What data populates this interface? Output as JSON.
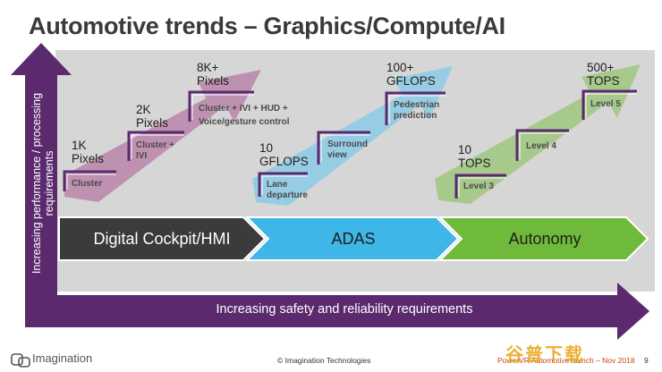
{
  "title": "Automotive trends – Graphics/Compute/AI",
  "y_axis_label": "Increasing performance / processing requirements",
  "x_axis_label": "Increasing safety and reliability requirements",
  "phases": [
    {
      "label": "Digital Cockpit/HMI",
      "color": "#3b3b3b",
      "text_color": "#ffffff"
    },
    {
      "label": "ADAS",
      "color": "#3fb6e8",
      "text_color": "#1e1e1e"
    },
    {
      "label": "Autonomy",
      "color": "#6fba3a",
      "text_color": "#1e1e1e"
    }
  ],
  "groups": {
    "cockpit": {
      "color": "#b57aa4",
      "steps": [
        {
          "value": "1K\nPixels",
          "feature": "Cluster"
        },
        {
          "value": "2K\nPixels",
          "feature": "Cluster +\nIVI"
        },
        {
          "value": "8K+\nPixels",
          "feature": "Cluster + IVI + HUD +\nVoice/gesture control"
        }
      ]
    },
    "adas": {
      "color": "#8ccbe6",
      "steps": [
        {
          "value": "10\nGFLOPS",
          "feature": "Lane\ndeparture"
        },
        {
          "value": "",
          "feature": "Surround\nview"
        },
        {
          "value": "100+\nGFLOPS",
          "feature": "Pedestrian\nprediction"
        }
      ]
    },
    "autonomy": {
      "color": "#9fc77e",
      "steps": [
        {
          "value": "10\nTOPS",
          "feature": "Level 3"
        },
        {
          "value": "",
          "feature": "Level 4"
        },
        {
          "value": "500+\nTOPS",
          "feature": "Level 5"
        }
      ]
    }
  },
  "footer": {
    "logo": "Imagination",
    "copyright": "© Imagination Technologies",
    "event": "PowerVR Automotive launch – Nov 2018",
    "page": "9",
    "watermark": "谷普下载"
  },
  "colors": {
    "axis": "#5b2a6e",
    "panel": "#d6d6d6",
    "step_outline": "#5b2a6e"
  }
}
